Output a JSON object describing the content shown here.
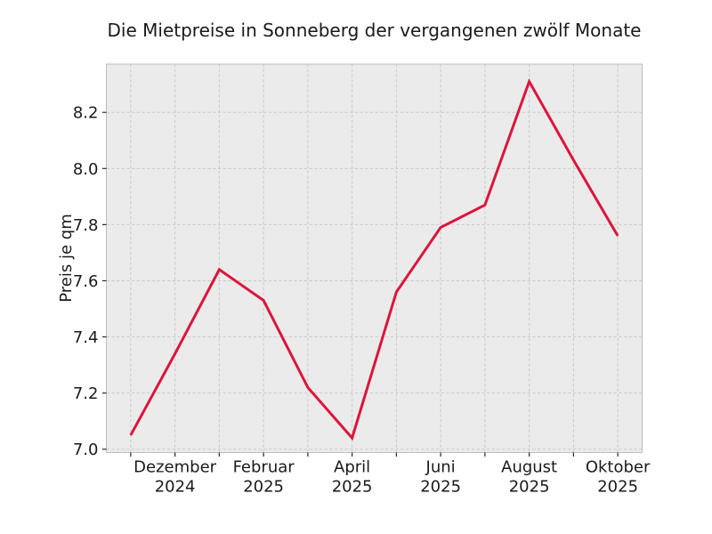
{
  "chart_data": {
    "type": "line",
    "title": "Die Mietpreise in Sonneberg der vergangenen zwölf Monate",
    "ylabel": "Preis je qm",
    "xlabel": "",
    "n_points": 12,
    "values": [
      7.05,
      7.34,
      7.64,
      7.53,
      7.22,
      7.04,
      7.56,
      7.79,
      7.87,
      8.31,
      8.03,
      7.76
    ],
    "x_tick_positions": [
      1,
      3,
      5,
      7,
      9,
      11
    ],
    "x_tick_labels": [
      {
        "line1": "Dezember",
        "line2": "2024"
      },
      {
        "line1": "Februar",
        "line2": "2025"
      },
      {
        "line1": "April",
        "line2": "2025"
      },
      {
        "line1": "Juni",
        "line2": "2025"
      },
      {
        "line1": "August",
        "line2": "2025"
      },
      {
        "line1": "Oktober",
        "line2": "2025"
      }
    ],
    "y_ticks": [
      {
        "value": 7.0,
        "label": "7.0"
      },
      {
        "value": 7.2,
        "label": "7.2"
      },
      {
        "value": 7.4,
        "label": "7.4"
      },
      {
        "value": 7.6,
        "label": "7.6"
      },
      {
        "value": 7.8,
        "label": "7.8"
      },
      {
        "value": 8.0,
        "label": "8.0"
      },
      {
        "value": 8.2,
        "label": "8.2"
      }
    ],
    "xlim": [
      -0.55,
      11.55
    ],
    "ylim": [
      6.988,
      8.372
    ],
    "grid": true,
    "grid_style": "dashed",
    "legend_position": "none",
    "colors": {
      "line": "#dc143c",
      "plot_background": "#ebebeb",
      "figure_background": "#ffffff",
      "gridline": "#c9c9c9",
      "plot_border": "#bdbdbd",
      "tick_mark": "#262626",
      "text": "#1a1a1a"
    }
  }
}
